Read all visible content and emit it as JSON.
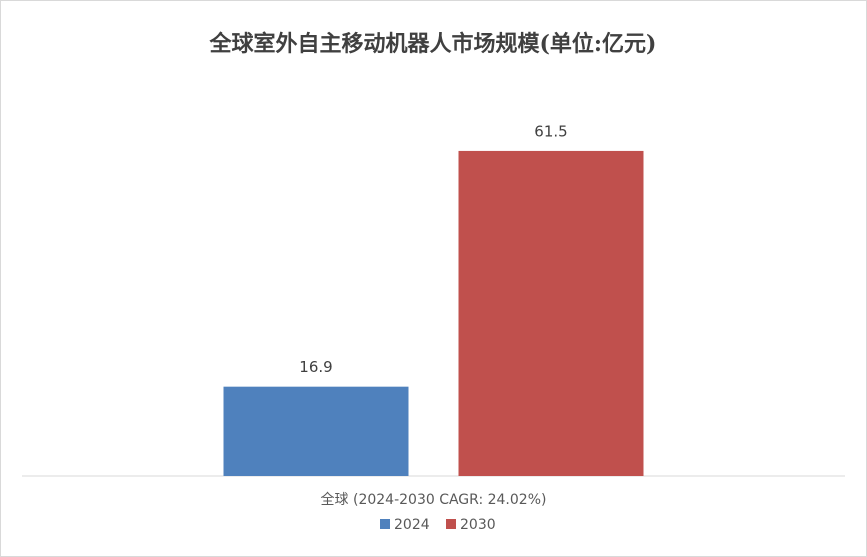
{
  "chart_data": {
    "type": "bar",
    "title": "全球室外自主移动机器人市场规模(单位:亿元)",
    "categories": [
      "全球 (2024-2030 CAGR: 24.02%)"
    ],
    "series": [
      {
        "name": "2024",
        "color": "#4f81bd",
        "values": [
          16.9
        ]
      },
      {
        "name": "2030",
        "color": "#c0504d",
        "values": [
          61.5
        ]
      }
    ],
    "ylim": [
      0,
      70
    ],
    "legend": "bottom"
  }
}
